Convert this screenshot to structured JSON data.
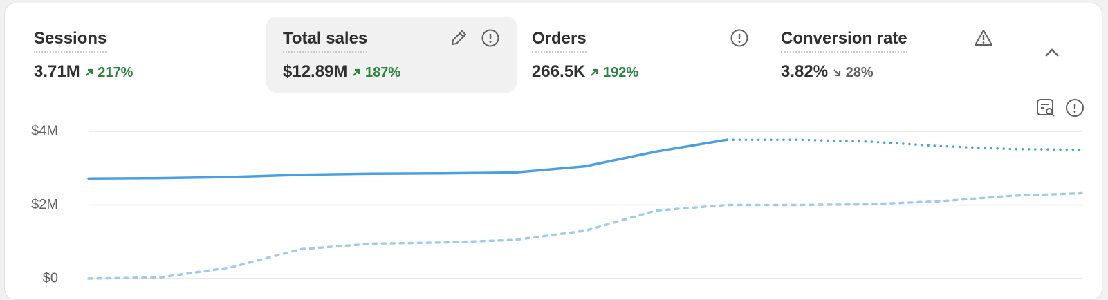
{
  "metrics": [
    {
      "label": "Sessions",
      "value": "3.71M",
      "change": "217%"
    },
    {
      "label": "Total sales",
      "value": "$12.89M",
      "change": "187%"
    },
    {
      "label": "Orders",
      "value": "266.5K",
      "change": "192%"
    },
    {
      "label": "Conversion rate",
      "value": "3.82%",
      "change": "28%"
    }
  ],
  "chart_data": {
    "type": "line",
    "categories": [
      null,
      null,
      null,
      null,
      null,
      null,
      null,
      null,
      null,
      null,
      null,
      null,
      null,
      null,
      null
    ],
    "series": [
      {
        "color": "#4a9fe0",
        "style": "solid",
        "values": [
          2.72,
          2.73,
          2.76,
          2.82,
          2.85,
          2.86,
          2.88,
          3.05,
          3.45,
          3.77,
          null,
          null,
          null,
          null,
          null
        ]
      },
      {
        "color": "#4a9fe0",
        "style": "dotted",
        "values": [
          null,
          null,
          null,
          null,
          null,
          null,
          null,
          null,
          null,
          3.77,
          3.77,
          3.72,
          3.6,
          3.52,
          3.5
        ]
      },
      {
        "color": "#9fcbee",
        "style": "dashed",
        "values": [
          0,
          0.03,
          0.3,
          0.8,
          0.95,
          0.98,
          1.05,
          1.3,
          1.85,
          2.0,
          2.0,
          2.02,
          2.1,
          2.25,
          2.32
        ]
      }
    ],
    "ylim": [
      0,
      4
    ],
    "yticks": [
      {
        "value": 0,
        "label": "$0"
      },
      {
        "value": 2,
        "label": "$2M"
      },
      {
        "value": 4,
        "label": "$4M"
      }
    ],
    "grid": true
  }
}
